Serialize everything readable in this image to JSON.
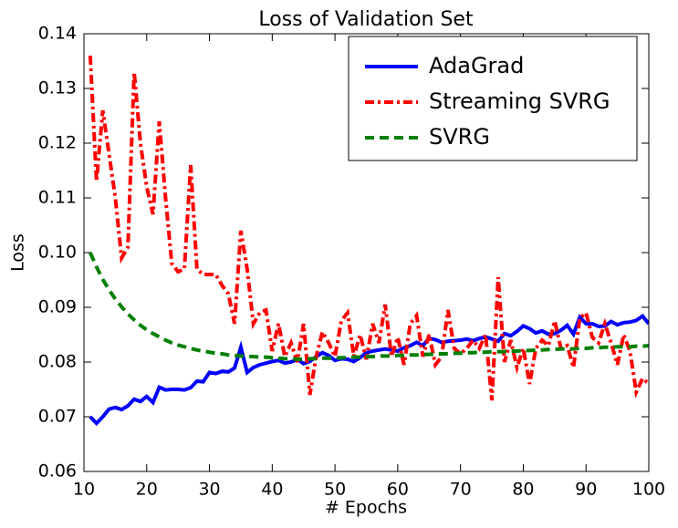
{
  "chart_data": {
    "type": "line",
    "title": "Loss of Validation Set",
    "xlabel": "# Epochs",
    "ylabel": "Loss",
    "x": [
      11,
      12,
      13,
      14,
      15,
      16,
      17,
      18,
      19,
      20,
      21,
      22,
      23,
      24,
      25,
      26,
      27,
      28,
      29,
      30,
      31,
      32,
      33,
      34,
      35,
      36,
      37,
      38,
      39,
      40,
      41,
      42,
      43,
      44,
      45,
      46,
      47,
      48,
      49,
      50,
      51,
      52,
      53,
      54,
      55,
      56,
      57,
      58,
      59,
      60,
      61,
      62,
      63,
      64,
      65,
      66,
      67,
      68,
      69,
      70,
      71,
      72,
      73,
      74,
      75,
      76,
      77,
      78,
      79,
      80,
      81,
      82,
      83,
      84,
      85,
      86,
      87,
      88,
      89,
      90,
      91,
      92,
      93,
      94,
      95,
      96,
      97,
      98,
      99,
      100
    ],
    "series": [
      {
        "name": "AdaGrad",
        "color": "#0000ff",
        "dash": "solid",
        "values": [
          0.07,
          0.0688,
          0.07,
          0.0714,
          0.0717,
          0.0713,
          0.072,
          0.0732,
          0.0728,
          0.0737,
          0.0726,
          0.0754,
          0.0749,
          0.075,
          0.075,
          0.0749,
          0.0753,
          0.0765,
          0.0764,
          0.0781,
          0.0779,
          0.0783,
          0.0782,
          0.0789,
          0.0827,
          0.0781,
          0.079,
          0.0795,
          0.0798,
          0.0801,
          0.0803,
          0.0798,
          0.08,
          0.0805,
          0.0797,
          0.0801,
          0.081,
          0.0817,
          0.0812,
          0.0803,
          0.0806,
          0.0805,
          0.0801,
          0.0808,
          0.0817,
          0.082,
          0.0822,
          0.0824,
          0.0822,
          0.082,
          0.0826,
          0.083,
          0.0836,
          0.083,
          0.0843,
          0.0841,
          0.0836,
          0.0838,
          0.0839,
          0.084,
          0.0842,
          0.0839,
          0.0843,
          0.0846,
          0.0842,
          0.0838,
          0.0852,
          0.0848,
          0.0856,
          0.0866,
          0.0861,
          0.0853,
          0.0857,
          0.0851,
          0.0852,
          0.0858,
          0.0867,
          0.0851,
          0.0882,
          0.087,
          0.087,
          0.0865,
          0.0866,
          0.0874,
          0.0868,
          0.0872,
          0.0873,
          0.0876,
          0.0884,
          0.087
        ]
      },
      {
        "name": "Streaming SVRG",
        "color": "#ff0000",
        "dash": "dashdot",
        "values": [
          0.136,
          0.113,
          0.126,
          0.118,
          0.11,
          0.099,
          0.101,
          0.133,
          0.12,
          0.112,
          0.107,
          0.124,
          0.11,
          0.098,
          0.0965,
          0.097,
          0.116,
          0.097,
          0.096,
          0.096,
          0.096,
          0.094,
          0.0925,
          0.087,
          0.104,
          0.097,
          0.087,
          0.089,
          0.0895,
          0.082,
          0.087,
          0.081,
          0.0835,
          0.08,
          0.087,
          0.074,
          0.081,
          0.0855,
          0.0835,
          0.081,
          0.0875,
          0.089,
          0.081,
          0.085,
          0.0805,
          0.087,
          0.0835,
          0.0905,
          0.081,
          0.0845,
          0.0795,
          0.087,
          0.0885,
          0.081,
          0.085,
          0.0795,
          0.081,
          0.0895,
          0.0825,
          0.0815,
          0.0825,
          0.084,
          0.0825,
          0.085,
          0.073,
          0.0955,
          0.08,
          0.084,
          0.079,
          0.0825,
          0.076,
          0.0825,
          0.084,
          0.083,
          0.0875,
          0.0825,
          0.083,
          0.079,
          0.088,
          0.089,
          0.0845,
          0.0835,
          0.087,
          0.0835,
          0.0795,
          0.085,
          0.082,
          0.0745,
          0.077,
          0.076
        ]
      },
      {
        "name": "SVRG",
        "color": "#008000",
        "dash": "dashed",
        "values": [
          0.1,
          0.0974,
          0.0951,
          0.0932,
          0.0915,
          0.0901,
          0.0888,
          0.0877,
          0.0867,
          0.0859,
          0.0852,
          0.0846,
          0.084,
          0.0835,
          0.0831,
          0.0828,
          0.0825,
          0.0822,
          0.082,
          0.0818,
          0.0816,
          0.0815,
          0.0813,
          0.0812,
          0.0811,
          0.081,
          0.081,
          0.0809,
          0.0809,
          0.0808,
          0.0807,
          0.0806,
          0.0806,
          0.0805,
          0.0805,
          0.0806,
          0.0806,
          0.0807,
          0.0807,
          0.0807,
          0.0808,
          0.0808,
          0.0809,
          0.0809,
          0.081,
          0.081,
          0.0811,
          0.0811,
          0.0811,
          0.0812,
          0.0812,
          0.0813,
          0.0813,
          0.0814,
          0.0814,
          0.0815,
          0.0815,
          0.0815,
          0.0816,
          0.0816,
          0.0817,
          0.0817,
          0.0818,
          0.0818,
          0.0819,
          0.0819,
          0.0819,
          0.082,
          0.082,
          0.0821,
          0.0821,
          0.0822,
          0.0822,
          0.0823,
          0.0823,
          0.0824,
          0.0824,
          0.0824,
          0.0825,
          0.0825,
          0.0826,
          0.0826,
          0.0827,
          0.0827,
          0.0828,
          0.0828,
          0.0828,
          0.0829,
          0.0829,
          0.083
        ]
      }
    ],
    "xlim": [
      10,
      100
    ],
    "xticks": [
      10,
      20,
      30,
      40,
      50,
      60,
      70,
      80,
      90,
      100
    ],
    "ylim": [
      0.06,
      0.14
    ],
    "yticks": [
      0.06,
      0.07,
      0.08,
      0.09,
      {
        "value": 0.1,
        "label": "0.10"
      },
      0.11,
      0.12,
      0.13,
      0.14
    ],
    "grid": false,
    "legend": "upper right"
  }
}
